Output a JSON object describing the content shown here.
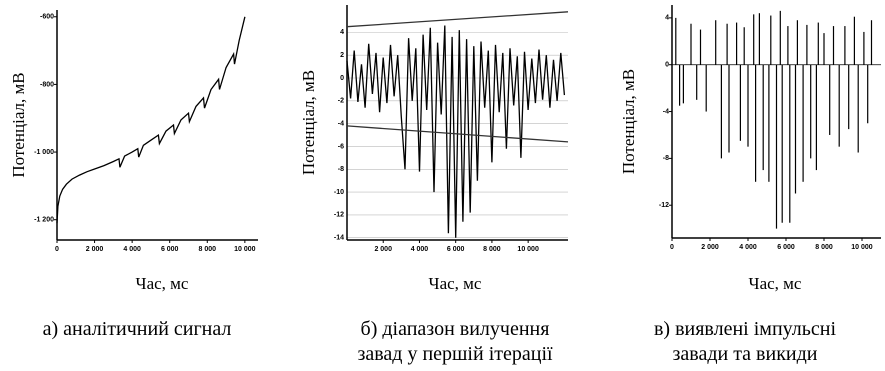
{
  "chart_data": [
    {
      "type": "line",
      "ylabel": "Потенціал, мВ",
      "xlabel": "Час, мс",
      "caption": [
        "а) аналітичний сигнал"
      ],
      "xlim": [
        0,
        10700
      ],
      "ylim": [
        -1260,
        -580
      ],
      "grid": false,
      "xticks": [
        0,
        {
          "value": 2000,
          "label": "2 000"
        },
        {
          "value": 4000,
          "label": "4 000"
        },
        {
          "value": 6000,
          "label": "6 000"
        },
        {
          "value": 8000,
          "label": "8 000"
        },
        {
          "value": 10000,
          "label": "10 000"
        }
      ],
      "yticks": [
        -600,
        -800,
        {
          "value": -1000,
          "label": "-1 000"
        },
        {
          "value": -1200,
          "label": "-1 200"
        }
      ],
      "series": [
        {
          "color": "#000000",
          "x": [
            0,
            50,
            150,
            300,
            500,
            800,
            1200,
            1600,
            2000,
            2500,
            3000,
            3300,
            3350,
            3600,
            4000,
            4300,
            4350,
            4600,
            5000,
            5400,
            5450,
            5800,
            6200,
            6250,
            6600,
            7000,
            7050,
            7400,
            7800,
            7850,
            8200,
            8600,
            8650,
            9000,
            9400,
            9450,
            9700,
            10000
          ],
          "values": [
            -1210,
            -1160,
            -1130,
            -1110,
            -1095,
            -1080,
            -1068,
            -1058,
            -1050,
            -1040,
            -1028,
            -1020,
            -1045,
            -1012,
            -1000,
            -990,
            -1015,
            -980,
            -965,
            -950,
            -975,
            -938,
            -920,
            -945,
            -905,
            -885,
            -910,
            -865,
            -840,
            -870,
            -815,
            -785,
            -815,
            -750,
            -710,
            -740,
            -670,
            -600
          ]
        }
      ]
    },
    {
      "type": "line",
      "ylabel": "Потенціал, мВ",
      "xlabel": "Час, мс",
      "caption": [
        "б) діапазон вилучення",
        "завад у першій ітерації"
      ],
      "xlim": [
        0,
        12200
      ],
      "ylim": [
        -14.2,
        6.4
      ],
      "grid": true,
      "xticks": [
        {
          "value": 2000,
          "label": "2 000"
        },
        {
          "value": 4000,
          "label": "4 000"
        },
        {
          "value": 6000,
          "label": "6 000"
        },
        {
          "value": 8000,
          "label": "8 000"
        },
        {
          "value": 10000,
          "label": "10 000"
        }
      ],
      "yticks": [
        4,
        2,
        0,
        -2,
        -4,
        -6,
        -8,
        -10,
        -12,
        -14
      ],
      "series": [
        {
          "color": "#000000",
          "x": [
            0,
            200,
            400,
            600,
            800,
            1000,
            1200,
            1400,
            1600,
            1800,
            2000,
            2200,
            2400,
            2600,
            2800,
            3000,
            3200,
            3400,
            3600,
            3800,
            4000,
            4200,
            4400,
            4600,
            4800,
            5000,
            5200,
            5400,
            5600,
            5800,
            6000,
            6200,
            6400,
            6600,
            6800,
            7000,
            7200,
            7400,
            7600,
            7800,
            8000,
            8200,
            8400,
            8600,
            8800,
            9000,
            9200,
            9400,
            9600,
            9800,
            10000,
            10200,
            10400,
            10600,
            10800,
            11000,
            11200,
            11400,
            11600,
            11800,
            12000
          ],
          "values": [
            1.5,
            -1.8,
            2.4,
            -2.1,
            1.2,
            -2.6,
            3.0,
            -1.4,
            2.2,
            -3.0,
            1.8,
            -2.2,
            2.9,
            -1.6,
            2.0,
            -3.4,
            -8.0,
            3.5,
            -2.0,
            2.6,
            -8.2,
            3.8,
            -2.8,
            4.4,
            -10.0,
            3.1,
            -3.2,
            4.6,
            -13.6,
            3.6,
            -14.0,
            4.2,
            -12.6,
            3.4,
            -11.8,
            2.8,
            -9.0,
            3.2,
            -2.6,
            2.4,
            -7.4,
            2.9,
            -3.0,
            2.2,
            -6.2,
            2.6,
            -2.4,
            1.9,
            -7.0,
            2.3,
            -2.8,
            1.7,
            -2.2,
            2.5,
            -1.9,
            2.0,
            -2.6,
            1.6,
            -2.0,
            2.2,
            -1.5
          ]
        },
        {
          "color": "#333333",
          "x": [
            0,
            12200
          ],
          "values": [
            4.5,
            5.8
          ]
        },
        {
          "color": "#333333",
          "x": [
            0,
            12200
          ],
          "values": [
            -4.2,
            -5.6
          ]
        }
      ]
    },
    {
      "type": "stem",
      "ylabel": "Потенціал, мВ",
      "xlabel": "Час, мс",
      "caption": [
        "в) виявлені імпульсні",
        "завади та викиди"
      ],
      "xlim": [
        0,
        11000
      ],
      "ylim": [
        -14.8,
        5.1
      ],
      "grid": false,
      "xticks": [
        0,
        {
          "value": 2000,
          "label": "2 000"
        },
        {
          "value": 4000,
          "label": "4 000"
        },
        {
          "value": 6000,
          "label": "6 000"
        },
        {
          "value": 8000,
          "label": "8 000"
        },
        {
          "value": 10000,
          "label": "10 000"
        }
      ],
      "yticks": [
        4,
        0,
        -4,
        -8,
        -12
      ],
      "series": [
        {
          "color": "#000000",
          "x": [
            200,
            1000,
            1500,
            2300,
            2900,
            3400,
            3800,
            4300,
            4600,
            5200,
            5700,
            6100,
            6600,
            7100,
            7700,
            8000,
            8500,
            9100,
            9600,
            10100,
            10500,
            400,
            600,
            1300,
            1800,
            2600,
            3000,
            3600,
            4000,
            4400,
            4800,
            5100,
            5500,
            5800,
            6200,
            6500,
            6900,
            7300,
            7600,
            8300,
            8800,
            9300,
            9800,
            10300
          ],
          "values": [
            4,
            3.5,
            3,
            3.8,
            3.5,
            3.6,
            3.2,
            4.3,
            4.4,
            4.2,
            4.6,
            3.3,
            3.8,
            3.4,
            3.6,
            2.7,
            3.3,
            3.3,
            4.1,
            2.8,
            3.8,
            -3.5,
            -3.3,
            -3,
            -4,
            -8,
            -7.5,
            -6.5,
            -7,
            -10,
            -9,
            -10,
            -14,
            -13.5,
            -13.5,
            -11,
            -10,
            -8,
            -9,
            -6,
            -7,
            -5.5,
            -7.5,
            -5
          ]
        }
      ]
    }
  ]
}
